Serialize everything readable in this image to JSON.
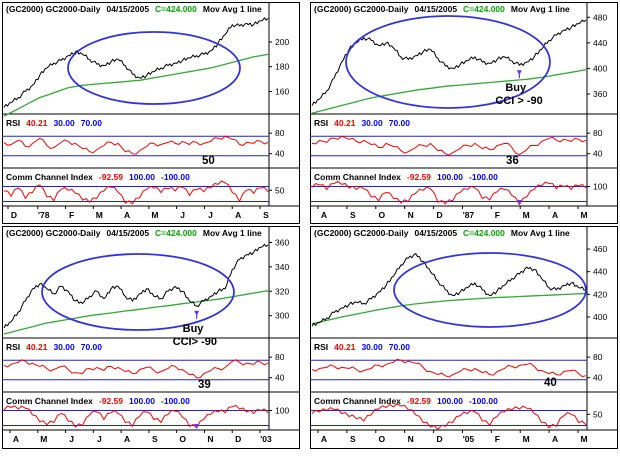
{
  "colors": {
    "price": "#000000",
    "moving_average": "#33aa33",
    "oscillator": "#ff0000",
    "band": "#2222cc",
    "ellipse": "#3333dd",
    "value_up": "#00aa00",
    "value_down": "#ff0000",
    "value_mid": "#0000ff",
    "arrow": "#6633ff"
  },
  "chart_data": [
    {
      "type": "line",
      "title": "(GC2000) GC2000-Daily",
      "date": "04/15/2005",
      "price_label": "C=424.000",
      "study": "Mov Avg 1 line",
      "y_ticks": [
        160,
        180,
        200
      ],
      "ylim": [
        145,
        221
      ],
      "x_labels": [
        "D",
        "'78",
        "F",
        "M",
        "A",
        "M",
        "J",
        "J",
        "A",
        "S"
      ],
      "price": [
        147,
        151,
        155,
        160,
        165,
        173,
        179,
        183,
        185,
        189,
        192,
        190,
        186,
        182,
        181,
        184,
        186,
        181,
        174,
        171,
        173,
        176,
        179,
        181,
        183,
        185,
        187,
        189,
        190,
        193,
        199,
        206,
        214,
        213,
        215,
        214,
        217,
        219
      ],
      "moving_average": [
        140,
        143,
        146,
        149,
        152,
        155,
        157,
        159,
        161,
        163,
        164,
        165,
        165.5,
        166,
        166.5,
        167,
        167.5,
        168,
        168.5,
        169,
        170,
        171,
        172,
        173,
        174,
        175,
        176,
        177,
        178,
        179,
        180.5,
        182,
        183.5,
        185,
        186.5,
        188,
        189,
        190
      ],
      "rsi": {
        "label": "RSI",
        "value": "40.21",
        "upper": "30.00",
        "lower": "70.00",
        "ticks": [
          40,
          80
        ],
        "annotation": "50",
        "values": [
          62,
          58,
          66,
          54,
          60,
          70,
          56,
          52,
          62,
          64,
          60,
          50,
          44,
          48,
          56,
          62,
          60,
          44,
          40,
          46,
          54,
          60,
          58,
          62,
          60,
          64,
          58,
          62,
          60,
          64,
          70,
          74,
          68,
          58,
          62,
          60,
          64,
          62
        ]
      },
      "cci": {
        "label": "Comm Channel Index",
        "value": "-92.59",
        "upper": "100.00",
        "lower": "-100.00",
        "ticks": [
          50
        ],
        "values": [
          40,
          -30,
          80,
          -60,
          20,
          120,
          -40,
          -90,
          60,
          50,
          10,
          -80,
          -110,
          -60,
          40,
          90,
          20,
          -120,
          -130,
          -50,
          60,
          80,
          20,
          70,
          40,
          90,
          -20,
          60,
          30,
          80,
          130,
          150,
          20,
          -100,
          50,
          10,
          80,
          30
        ]
      },
      "annotations": []
    },
    {
      "type": "line",
      "title": "(GC2000) GC2000-Daily",
      "date": "04/15/2005",
      "price_label": "C=424.000",
      "study": "Mov Avg 1 line",
      "y_ticks": [
        360,
        400,
        440,
        480
      ],
      "ylim": [
        335,
        482
      ],
      "x_labels": [
        "A",
        "S",
        "O",
        "N",
        "D",
        "'87",
        "F",
        "M",
        "A",
        "M"
      ],
      "price": [
        342,
        352,
        365,
        385,
        410,
        430,
        440,
        448,
        444,
        436,
        440,
        432,
        418,
        414,
        420,
        426,
        430,
        416,
        404,
        400,
        406,
        412,
        418,
        410,
        408,
        414,
        418,
        412,
        405,
        410,
        418,
        430,
        444,
        452,
        460,
        464,
        470,
        476
      ],
      "moving_average": [
        330,
        333,
        336,
        339,
        342,
        345,
        348,
        351,
        354,
        356,
        358,
        360,
        362,
        364,
        366,
        367.5,
        369,
        370.5,
        372,
        373,
        374,
        375,
        376,
        377,
        378,
        379,
        380,
        381,
        382,
        383,
        384.5,
        386,
        388,
        390,
        392,
        394,
        396,
        398
      ],
      "rsi": {
        "label": "RSI",
        "value": "40.21",
        "upper": "30.00",
        "lower": "70.00",
        "ticks": [
          40,
          80
        ],
        "annotation": "36",
        "values": [
          60,
          66,
          62,
          70,
          74,
          68,
          64,
          66,
          58,
          52,
          60,
          54,
          46,
          44,
          52,
          56,
          60,
          46,
          40,
          42,
          50,
          56,
          60,
          50,
          48,
          56,
          60,
          52,
          38,
          48,
          56,
          64,
          70,
          66,
          68,
          64,
          68,
          66
        ]
      },
      "cci": {
        "label": "Comm Channel Index",
        "value": "-92.59",
        "upper": "100.00",
        "lower": "-100.00",
        "ticks": [
          100
        ],
        "values": [
          90,
          120,
          60,
          140,
          130,
          80,
          60,
          70,
          -40,
          -90,
          20,
          -60,
          -120,
          -100,
          10,
          50,
          70,
          -110,
          -130,
          -90,
          20,
          60,
          80,
          -60,
          -80,
          30,
          60,
          -20,
          -140,
          -40,
          60,
          110,
          140,
          70,
          100,
          60,
          110,
          80
        ]
      },
      "annotations": [
        {
          "lines": [
            "Buy",
            "CCI > -90"
          ],
          "index": 28
        }
      ]
    },
    {
      "type": "line",
      "title": "(GC2000) GC2000-Daily",
      "date": "04/15/2005",
      "price_label": "C=424.000",
      "study": "Mov Avg 1 line",
      "y_ticks": [
        300,
        320,
        340,
        360
      ],
      "ylim": [
        285,
        362
      ],
      "x_labels": [
        "A",
        "M",
        "J",
        "J",
        "A",
        "S",
        "O",
        "N",
        "D",
        "'03"
      ],
      "price": [
        290,
        295,
        303,
        312,
        322,
        326,
        322,
        318,
        324,
        320,
        312,
        310,
        316,
        320,
        314,
        322,
        324,
        316,
        312,
        318,
        322,
        316,
        314,
        320,
        324,
        320,
        312,
        308,
        312,
        316,
        320,
        322,
        338,
        346,
        350,
        352,
        356,
        358
      ],
      "moving_average": [
        285,
        286.5,
        288,
        289.5,
        291,
        292.5,
        294,
        295,
        296,
        297,
        298,
        299,
        300,
        300.8,
        301.5,
        302.2,
        303,
        303.8,
        304.5,
        305.2,
        306,
        306.8,
        307.5,
        308.2,
        309,
        309.8,
        310.5,
        311.2,
        312,
        312.8,
        313.5,
        314.5,
        315.5,
        316.5,
        317.5,
        318.5,
        319.5,
        320.5
      ],
      "rsi": {
        "label": "RSI",
        "value": "40.21",
        "upper": "30.00",
        "lower": "70.00",
        "ticks": [
          40,
          80
        ],
        "annotation": "39",
        "values": [
          64,
          66,
          70,
          72,
          68,
          62,
          58,
          56,
          62,
          56,
          50,
          48,
          58,
          60,
          54,
          62,
          60,
          52,
          48,
          56,
          60,
          54,
          52,
          58,
          62,
          56,
          46,
          40,
          48,
          54,
          58,
          60,
          72,
          70,
          68,
          66,
          70,
          68
        ]
      },
      "cci": {
        "label": "Comm Channel Index",
        "value": "-92.59",
        "upper": "100.00",
        "lower": "-100.00",
        "ticks": [
          100
        ],
        "values": [
          110,
          140,
          120,
          130,
          40,
          -50,
          -90,
          -60,
          60,
          -40,
          -120,
          -100,
          40,
          80,
          -20,
          70,
          60,
          -60,
          -110,
          20,
          80,
          -20,
          -60,
          50,
          90,
          10,
          -110,
          -130,
          -20,
          50,
          80,
          70,
          150,
          120,
          80,
          60,
          100,
          70
        ]
      },
      "annotations": [
        {
          "lines": [
            "Buy",
            "CCI> -90"
          ],
          "index": 27
        }
      ]
    },
    {
      "type": "line",
      "title": "(GC2000) GC2000-Daily",
      "date": "04/15/2005",
      "price_label": "C=424.000",
      "study": "Mov Avg 1 line",
      "y_ticks": [
        400,
        420,
        440,
        460
      ],
      "ylim": [
        385,
        468
      ],
      "x_labels": [
        "A",
        "S",
        "O",
        "N",
        "D",
        "'05",
        "F",
        "M",
        "A",
        "M"
      ],
      "price": [
        392,
        395,
        399,
        404,
        408,
        411,
        413,
        412,
        416,
        422,
        428,
        436,
        446,
        452,
        456,
        449,
        440,
        432,
        424,
        419,
        422,
        426,
        430,
        424,
        419,
        423,
        428,
        434,
        438,
        444,
        442,
        434,
        426,
        424,
        428,
        430,
        426,
        424
      ],
      "moving_average": [
        394,
        395.5,
        397,
        398.5,
        400,
        401.3,
        402.6,
        403.9,
        405.2,
        406.5,
        407.6,
        408.7,
        409.8,
        410.7,
        411.6,
        412.3,
        413,
        413.6,
        414.2,
        414.7,
        415.2,
        415.6,
        416,
        416.4,
        416.8,
        417.2,
        417.5,
        417.8,
        418.1,
        418.4,
        418.7,
        419,
        419.3,
        419.6,
        419.9,
        420.2,
        420.5,
        420.8
      ],
      "rsi": {
        "label": "RSI",
        "value": "40.21",
        "upper": "30.00",
        "lower": "70.00",
        "ticks": [
          40,
          80
        ],
        "annotation": "40",
        "values": [
          56,
          58,
          60,
          62,
          60,
          58,
          56,
          54,
          58,
          64,
          66,
          70,
          74,
          72,
          68,
          60,
          52,
          46,
          44,
          46,
          52,
          56,
          58,
          50,
          46,
          52,
          58,
          62,
          64,
          66,
          62,
          54,
          48,
          46,
          52,
          54,
          48,
          44
        ]
      },
      "cci": {
        "label": "Comm Channel Index",
        "value": "-92.59",
        "upper": "100.00",
        "lower": "-100.00",
        "ticks": [
          50
        ],
        "values": [
          60,
          80,
          100,
          110,
          60,
          20,
          -10,
          -40,
          40,
          120,
          140,
          150,
          160,
          110,
          40,
          -60,
          -120,
          -150,
          -110,
          -60,
          30,
          60,
          80,
          -40,
          -100,
          20,
          80,
          110,
          120,
          130,
          60,
          -60,
          -130,
          -110,
          30,
          50,
          -60,
          -90
        ]
      },
      "annotations": []
    }
  ]
}
